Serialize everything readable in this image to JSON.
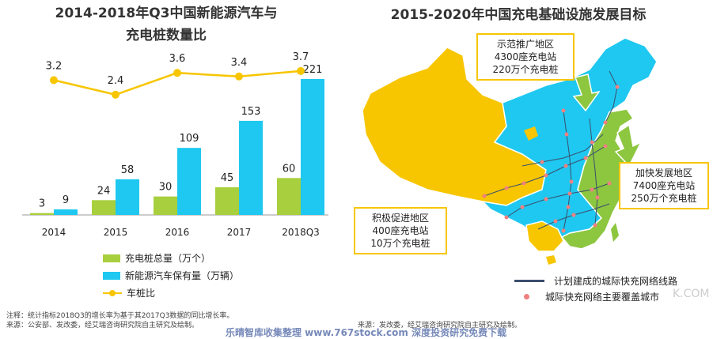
{
  "left_chart": {
    "title_line1": "2014-2018年Q3中国新能源汽车与",
    "title_line2": "充电桩数量比"
  },
  "right_chart": {
    "title": "2015-2020年中国充电基础设施发展目标"
  },
  "chart_data": [
    {
      "type": "bar",
      "categories": [
        "2014",
        "2015",
        "2016",
        "2017",
        "2018Q3"
      ],
      "series": [
        {
          "name": "充电桩总量（万个）",
          "values": [
            3,
            24,
            30,
            45,
            60
          ],
          "color": "#a8cf3d"
        },
        {
          "name": "新能源汽车保有量（万辆）",
          "values": [
            9,
            58,
            109,
            153,
            221
          ],
          "color": "#1ec8f0"
        },
        {
          "name": "车桩比",
          "type": "line",
          "values": [
            3.2,
            2.4,
            3.6,
            3.4,
            3.7
          ],
          "color": "#f7c600"
        }
      ],
      "ylim": [
        0,
        221
      ],
      "line_ylim": [
        0,
        4
      ],
      "legend_position": "bottom",
      "grid": false
    }
  ],
  "legend": {
    "piles": "充电桩总量（万个）",
    "vehicles": "新能源汽车保有量（万辆）",
    "ratio": "车桩比"
  },
  "notes": {
    "note": "注释：统计指标2018Q3的增长率为基于其2017Q3数据的同比增长率。",
    "source_left": "来源：公安部、发改委，经艾瑞咨询研究院自主研究及绘制。",
    "source_right": "来源：发改委，经艾瑞咨询研究院自主研究及绘制。",
    "watermark": "乐晴智库收集整理 www.767stock.com 深度投资研究免费下载",
    "watermark2": "K.COM"
  },
  "map": {
    "callout_north": [
      "示范推广地区",
      "4300座充电站",
      "220万个充电桩"
    ],
    "callout_east": [
      "加快发展地区",
      "7400座充电站",
      "250万个充电桩"
    ],
    "callout_west": [
      "积极促进地区",
      "400座充电站",
      "10万个充电桩"
    ],
    "legend_line": "计划建成的城际快充网络线路",
    "legend_dot": "城际快充网络主要覆盖城市",
    "colors": {
      "north": "#1ec8f0",
      "east": "#8dc63f",
      "west": "#f7c600",
      "network": "#3a4e6e",
      "city": "#f08080"
    }
  }
}
